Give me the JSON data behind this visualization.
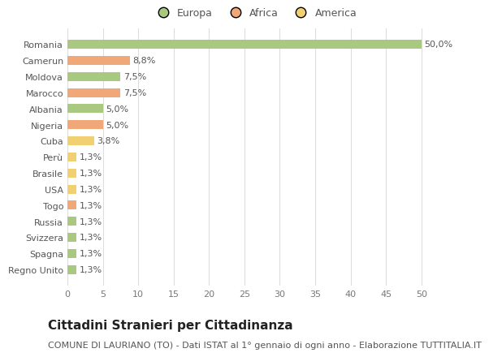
{
  "countries": [
    "Romania",
    "Camerun",
    "Moldova",
    "Marocco",
    "Albania",
    "Nigeria",
    "Cuba",
    "Perù",
    "Brasile",
    "USA",
    "Togo",
    "Russia",
    "Svizzera",
    "Spagna",
    "Regno Unito"
  ],
  "values": [
    50.0,
    8.8,
    7.5,
    7.5,
    5.0,
    5.0,
    3.8,
    1.3,
    1.3,
    1.3,
    1.3,
    1.3,
    1.3,
    1.3,
    1.3
  ],
  "labels": [
    "50,0%",
    "8,8%",
    "7,5%",
    "7,5%",
    "5,0%",
    "5,0%",
    "3,8%",
    "1,3%",
    "1,3%",
    "1,3%",
    "1,3%",
    "1,3%",
    "1,3%",
    "1,3%",
    "1,3%"
  ],
  "continents": [
    "Europa",
    "Africa",
    "Europa",
    "Africa",
    "Europa",
    "Africa",
    "America",
    "America",
    "America",
    "America",
    "Africa",
    "Europa",
    "Europa",
    "Europa",
    "Europa"
  ],
  "colors": {
    "Europa": "#a8c97f",
    "Africa": "#f0a878",
    "America": "#f0d070"
  },
  "title": "Cittadini Stranieri per Cittadinanza",
  "subtitle": "COMUNE DI LAURIANO (TO) - Dati ISTAT al 1° gennaio di ogni anno - Elaborazione TUTTITALIA.IT",
  "xlim": [
    0,
    53
  ],
  "xticks": [
    0,
    5,
    10,
    15,
    20,
    25,
    30,
    35,
    40,
    45,
    50
  ],
  "background_color": "#ffffff",
  "grid_color": "#dddddd",
  "bar_height": 0.55,
  "title_fontsize": 11,
  "subtitle_fontsize": 8,
  "tick_fontsize": 8,
  "label_fontsize": 8,
  "legend_fontsize": 9
}
